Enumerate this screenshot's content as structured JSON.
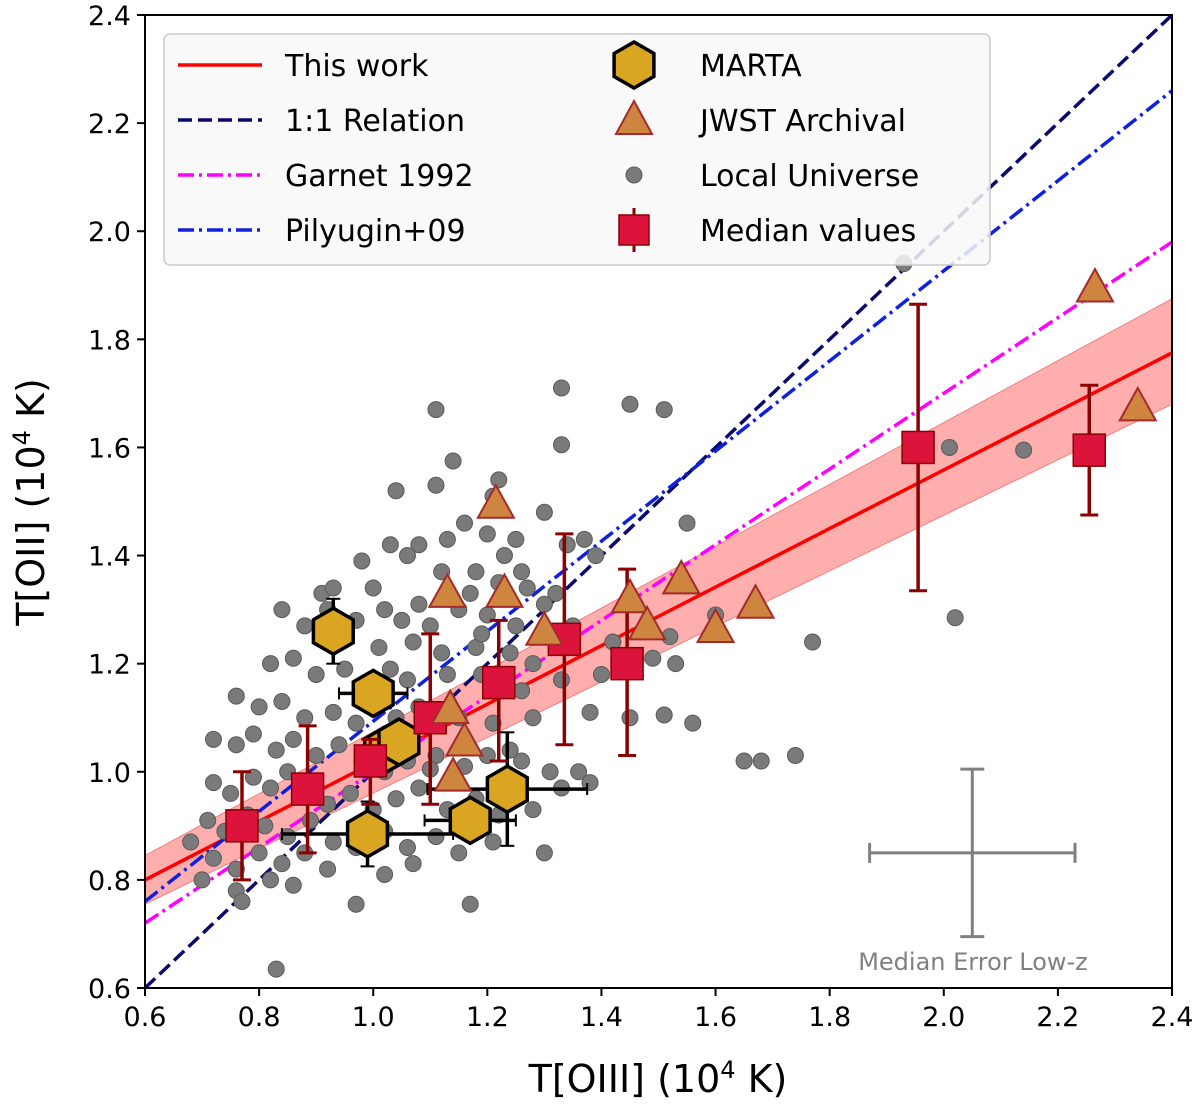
{
  "chart_data": {
    "type": "scatter",
    "xlabel_main": "T[OIII] (10",
    "xlabel_exp": "4",
    "xlabel_tail": " K)",
    "ylabel_main": "T[OII]  (10",
    "ylabel_exp": "4",
    "ylabel_tail": " K)",
    "xlim": [
      0.6,
      2.4
    ],
    "ylim": [
      0.6,
      2.4
    ],
    "xticks": [
      "0.6",
      "0.8",
      "1.0",
      "1.2",
      "1.4",
      "1.6",
      "1.8",
      "2.0",
      "2.2",
      "2.4"
    ],
    "yticks": [
      "0.6",
      "0.8",
      "1.0",
      "1.2",
      "1.4",
      "1.6",
      "1.8",
      "2.0",
      "2.2",
      "2.4"
    ],
    "colors": {
      "this_work": "#ff0000",
      "band": "#ff9a9a",
      "one_to_one": "#0a0a6e",
      "garnet": "#ff00ff",
      "pilyugin": "#1020e0",
      "marta_fill": "#daa520",
      "jwst_fill": "#cd853f",
      "jwst_edge": "#a52a2a",
      "local": "#7a7a7a",
      "median_fill": "#dc143c",
      "median_err": "#8b0000",
      "note": "#808080"
    },
    "relations": [
      {
        "name": "This work",
        "x": [
          0.6,
          2.4
        ],
        "y": [
          0.8,
          1.775
        ],
        "band_low": [
          0.755,
          1.68
        ],
        "band_high": [
          0.845,
          1.875
        ]
      },
      {
        "name": "1:1 Relation",
        "x": [
          0.6,
          2.4
        ],
        "y": [
          0.6,
          2.4
        ]
      },
      {
        "name": "Garnet 1992",
        "x": [
          0.6,
          2.4
        ],
        "y": [
          0.72,
          1.98
        ]
      },
      {
        "name": "Pilyugin+09",
        "x": [
          0.6,
          2.4
        ],
        "y": [
          0.76,
          2.26
        ]
      }
    ],
    "series": [
      {
        "name": "MARTA",
        "marker": "hexagon",
        "points": [
          {
            "x": 0.93,
            "y": 1.26,
            "xerr": 0.02,
            "yerr": 0.06
          },
          {
            "x": 1.0,
            "y": 1.145,
            "xerr": 0.06,
            "yerr": 0.0
          },
          {
            "x": 1.02,
            "y": 1.04,
            "xerr": 0.0,
            "yerr": 0.0
          },
          {
            "x": 1.045,
            "y": 1.055,
            "xerr": 0.0,
            "yerr": 0.0
          },
          {
            "x": 0.99,
            "y": 0.885,
            "xerr": 0.15,
            "yerr": 0.06
          },
          {
            "x": 1.17,
            "y": 0.91,
            "xerr": 0.08,
            "yerr": 0.0
          },
          {
            "x": 1.235,
            "y": 0.968,
            "xerr": 0.14,
            "yerr": 0.105
          }
        ]
      },
      {
        "name": "JWST Archival",
        "marker": "triangle",
        "points": [
          {
            "x": 1.135,
            "y": 1.115
          },
          {
            "x": 1.16,
            "y": 1.055
          },
          {
            "x": 1.14,
            "y": 0.99
          },
          {
            "x": 1.13,
            "y": 1.33
          },
          {
            "x": 1.23,
            "y": 1.33
          },
          {
            "x": 1.215,
            "y": 1.495
          },
          {
            "x": 1.3,
            "y": 1.26
          },
          {
            "x": 1.45,
            "y": 1.32
          },
          {
            "x": 1.48,
            "y": 1.27
          },
          {
            "x": 1.54,
            "y": 1.355
          },
          {
            "x": 1.6,
            "y": 1.265
          },
          {
            "x": 1.67,
            "y": 1.31
          },
          {
            "x": 2.265,
            "y": 1.895
          },
          {
            "x": 2.34,
            "y": 1.675
          }
        ]
      },
      {
        "name": "Local Universe",
        "marker": "circle",
        "points": [
          [
            1.93,
            1.94
          ],
          [
            1.33,
            1.71
          ],
          [
            1.11,
            1.67
          ],
          [
            1.45,
            1.68
          ],
          [
            1.51,
            1.67
          ],
          [
            1.33,
            1.605
          ],
          [
            1.14,
            1.575
          ],
          [
            1.04,
            1.52
          ],
          [
            1.22,
            1.54
          ],
          [
            1.3,
            1.48
          ],
          [
            1.13,
            1.43
          ],
          [
            1.2,
            1.44
          ],
          [
            1.25,
            1.43
          ],
          [
            1.03,
            1.42
          ],
          [
            1.08,
            1.42
          ],
          [
            1.16,
            1.46
          ],
          [
            1.23,
            1.4
          ],
          [
            1.34,
            1.42
          ],
          [
            1.39,
            1.4
          ],
          [
            0.98,
            1.39
          ],
          [
            1.06,
            1.4
          ],
          [
            1.12,
            1.37
          ],
          [
            1.18,
            1.37
          ],
          [
            1.26,
            1.37
          ],
          [
            0.91,
            1.33
          ],
          [
            0.93,
            1.34
          ],
          [
            1.0,
            1.34
          ],
          [
            1.02,
            1.3
          ],
          [
            1.08,
            1.31
          ],
          [
            1.17,
            1.33
          ],
          [
            1.22,
            1.35
          ],
          [
            1.27,
            1.34
          ],
          [
            1.32,
            1.33
          ],
          [
            0.92,
            1.3
          ],
          [
            0.97,
            1.28
          ],
          [
            1.05,
            1.28
          ],
          [
            1.1,
            1.27
          ],
          [
            1.15,
            1.3
          ],
          [
            1.2,
            1.29
          ],
          [
            1.25,
            1.27
          ],
          [
            1.55,
            1.46
          ],
          [
            0.84,
            1.3
          ],
          [
            0.88,
            1.27
          ],
          [
            0.95,
            1.25
          ],
          [
            1.01,
            1.23
          ],
          [
            1.07,
            1.24
          ],
          [
            1.12,
            1.22
          ],
          [
            1.18,
            1.23
          ],
          [
            1.24,
            1.22
          ],
          [
            1.28,
            1.2
          ],
          [
            0.82,
            1.2
          ],
          [
            0.86,
            1.21
          ],
          [
            0.9,
            1.18
          ],
          [
            0.95,
            1.19
          ],
          [
            1.03,
            1.19
          ],
          [
            1.06,
            1.17
          ],
          [
            1.13,
            1.18
          ],
          [
            1.19,
            1.18
          ],
          [
            1.26,
            1.15
          ],
          [
            1.33,
            1.17
          ],
          [
            0.76,
            1.14
          ],
          [
            0.8,
            1.12
          ],
          [
            0.84,
            1.13
          ],
          [
            0.88,
            1.1
          ],
          [
            0.93,
            1.11
          ],
          [
            0.97,
            1.09
          ],
          [
            1.04,
            1.1
          ],
          [
            1.08,
            1.12
          ],
          [
            1.15,
            1.1
          ],
          [
            1.21,
            1.09
          ],
          [
            1.28,
            1.1
          ],
          [
            1.4,
            1.18
          ],
          [
            0.72,
            1.06
          ],
          [
            0.76,
            1.05
          ],
          [
            0.79,
            1.07
          ],
          [
            0.83,
            1.04
          ],
          [
            0.86,
            1.06
          ],
          [
            0.9,
            1.03
          ],
          [
            0.94,
            1.05
          ],
          [
            0.98,
            1.02
          ],
          [
            1.02,
            1.0
          ],
          [
            1.06,
            1.02
          ],
          [
            1.11,
            1.03
          ],
          [
            1.16,
            1.01
          ],
          [
            1.2,
            1.03
          ],
          [
            1.26,
            1.02
          ],
          [
            1.31,
            1.0
          ],
          [
            1.36,
            1.0
          ],
          [
            0.72,
            0.98
          ],
          [
            0.75,
            0.96
          ],
          [
            0.79,
            0.99
          ],
          [
            0.82,
            0.97
          ],
          [
            0.85,
            1.0
          ],
          [
            0.89,
            0.96
          ],
          [
            0.92,
            0.94
          ],
          [
            0.96,
            0.96
          ],
          [
            1.0,
            0.93
          ],
          [
            1.04,
            0.95
          ],
          [
            1.08,
            0.97
          ],
          [
            1.13,
            0.93
          ],
          [
            1.18,
            0.95
          ],
          [
            1.22,
            0.92
          ],
          [
            1.28,
            0.93
          ],
          [
            1.33,
            0.97
          ],
          [
            1.38,
            0.98
          ],
          [
            0.71,
            0.91
          ],
          [
            0.74,
            0.89
          ],
          [
            0.78,
            0.92
          ],
          [
            0.81,
            0.9
          ],
          [
            0.85,
            0.88
          ],
          [
            0.89,
            0.91
          ],
          [
            0.93,
            0.87
          ],
          [
            0.97,
            0.86
          ],
          [
            1.02,
            0.89
          ],
          [
            1.06,
            0.86
          ],
          [
            1.11,
            0.88
          ],
          [
            1.15,
            0.85
          ],
          [
            1.21,
            0.87
          ],
          [
            1.3,
            0.85
          ],
          [
            0.72,
            0.84
          ],
          [
            0.76,
            0.82
          ],
          [
            0.8,
            0.85
          ],
          [
            0.84,
            0.83
          ],
          [
            0.88,
            0.85
          ],
          [
            0.92,
            0.82
          ],
          [
            1.02,
            0.81
          ],
          [
            1.07,
            0.83
          ],
          [
            0.76,
            0.78
          ],
          [
            0.82,
            0.8
          ],
          [
            0.86,
            0.79
          ],
          [
            0.77,
            0.76
          ],
          [
            0.97,
            0.755
          ],
          [
            1.17,
            0.755
          ],
          [
            0.83,
            0.635
          ],
          [
            1.6,
            1.29
          ],
          [
            1.52,
            1.25
          ],
          [
            1.49,
            1.21
          ],
          [
            1.53,
            1.2
          ],
          [
            1.42,
            1.24
          ],
          [
            1.38,
            1.11
          ],
          [
            1.45,
            1.1
          ],
          [
            1.51,
            1.105
          ],
          [
            1.56,
            1.09
          ],
          [
            1.65,
            1.02
          ],
          [
            1.68,
            1.02
          ],
          [
            1.74,
            1.03
          ],
          [
            1.77,
            1.24
          ],
          [
            2.01,
            1.6
          ],
          [
            2.14,
            1.595
          ],
          [
            2.02,
            1.285
          ],
          [
            1.11,
            1.53
          ],
          [
            1.21,
            1.51
          ],
          [
            1.37,
            1.43
          ],
          [
            1.3,
            1.31
          ],
          [
            1.35,
            1.27
          ],
          [
            0.68,
            0.87
          ],
          [
            0.7,
            0.8
          ],
          [
            1.19,
            1.255
          ],
          [
            0.99,
            1.145
          ],
          [
            1.1,
            1.005
          ],
          [
            1.24,
            1.04
          ]
        ]
      },
      {
        "name": "Median values",
        "marker": "square",
        "points": [
          {
            "x": 0.77,
            "y": 0.9,
            "lo": 0.8,
            "hi": 1.0
          },
          {
            "x": 0.885,
            "y": 0.968,
            "lo": 0.85,
            "hi": 1.085
          },
          {
            "x": 0.995,
            "y": 1.02,
            "lo": 0.94,
            "hi": 1.06
          },
          {
            "x": 1.1,
            "y": 1.1,
            "lo": 0.94,
            "hi": 1.255
          },
          {
            "x": 1.22,
            "y": 1.165,
            "lo": 1.02,
            "hi": 1.28
          },
          {
            "x": 1.335,
            "y": 1.245,
            "lo": 1.05,
            "hi": 1.44
          },
          {
            "x": 1.445,
            "y": 1.2,
            "lo": 1.03,
            "hi": 1.375
          },
          {
            "x": 1.955,
            "y": 1.6,
            "lo": 1.335,
            "hi": 1.865
          },
          {
            "x": 2.255,
            "y": 1.595,
            "lo": 1.475,
            "hi": 1.715
          }
        ]
      }
    ],
    "legend": {
      "position": "upper-left",
      "entries": [
        "This work",
        "1:1 Relation",
        "Garnet 1992",
        "Pilyugin+09",
        "MARTA",
        "JWST Archival",
        "Local Universe",
        "Median values"
      ]
    },
    "median_error": {
      "x": 2.05,
      "y": 0.85,
      "xerr": 0.18,
      "yerr": 0.155,
      "label": "Median Error Low-z"
    }
  }
}
